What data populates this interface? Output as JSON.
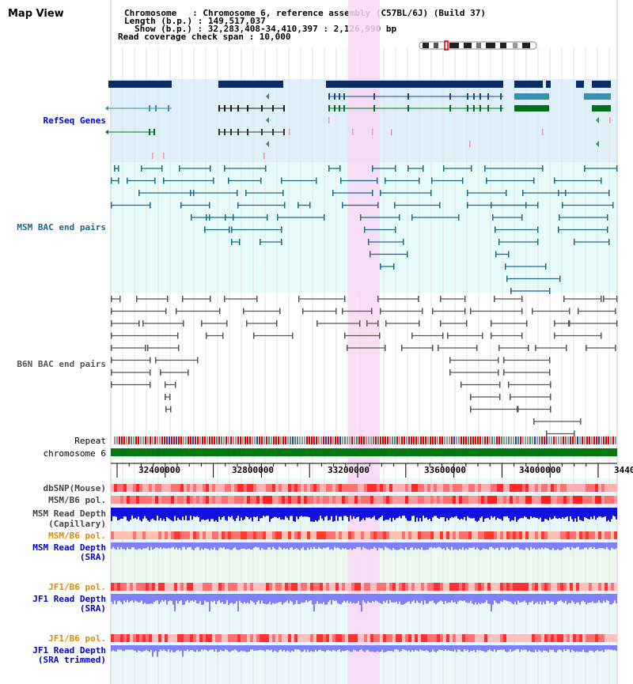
{
  "page": {
    "title": "Map View",
    "info": {
      "chromosome": "Chromosome   : Chromosome 6, reference assembly (C57BL/6J) (Build 37)",
      "length": "Length (b.p.) : 149,517,037",
      "show": "Show (b.p.) : 32,283,408-34,410,397 : 2,126,990 bp",
      "coverage": "Read coverage check span : 10,000"
    }
  },
  "tracks": {
    "refseq": "RefSeq Genes",
    "msm_bac": "MSM BAC end pairs",
    "b6n_bac": "B6N BAC end pairs",
    "repeat": "Repeat",
    "chromosome": "chromosome 6",
    "dbsnp": "dbSNP(Mouse)",
    "msm_b6_pol": "MSM/B6 pol.",
    "msm_read_depth_cap_1": "MSM Read Depth",
    "msm_read_depth_cap_2": "(Capillary)",
    "msm_b6_pol_2": "MSM/B6 pol.",
    "msm_read_depth_sra_1": "MSM Read Depth",
    "msm_read_depth_sra_2": "(SRA)",
    "jf1_b6_pol": "JF1/B6 pol.",
    "jf1_read_depth_sra_1": "JF1 Read Depth",
    "jf1_read_depth_sra_2": "(SRA)",
    "jf1_b6_pol_2": "JF1/B6 pol.",
    "jf1_read_depth_trim_1": "JF1 Read Depth",
    "jf1_read_depth_trim_2": "(SRA trimmed)"
  },
  "axis": {
    "ticks": [
      "32400000",
      "32800000",
      "33200000",
      "33600000",
      "34000000",
      "3440"
    ]
  },
  "colors": {
    "refseq_bg": "#dff0fa",
    "msm_bg": "#e8fbfb",
    "b6n_bg": "#ffffff",
    "highlight": "#f8d8f4",
    "gene_dark": "#0b2b63",
    "gene_teal": "#3c8fb4",
    "gene_green": "#00701a",
    "msm_pair": "#1a6a8c",
    "b6n_pair": "#555555",
    "chromosome": "#007a10",
    "depth_dark": "#1010e0",
    "depth_light": "#8080ff",
    "label_refseq": "#0000cc",
    "label_msm": "#1a6a8c",
    "label_b6n": "#555555",
    "label_orange": "#e08a00",
    "label_blue": "#0000cc"
  }
}
